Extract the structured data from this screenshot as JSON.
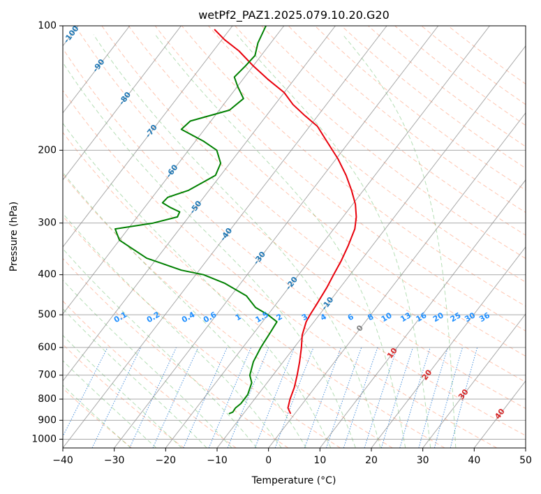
{
  "chart_data": {
    "type": "line",
    "diagram": "skew-T log-P",
    "title": "wetPf2_PAZ1.2025.079.10.20.G20",
    "xlabel": "Temperature (°C)",
    "ylabel": "Pressure (hPa)",
    "xlim": [
      -40,
      50
    ],
    "ylim": [
      1050,
      100
    ],
    "y_scale": "log",
    "x_ticks": [
      -40,
      -30,
      -20,
      -10,
      0,
      10,
      20,
      30,
      40,
      50
    ],
    "x_tick_labels": [
      "−40",
      "−30",
      "−20",
      "−10",
      "0",
      "10",
      "20",
      "30",
      "40",
      "50"
    ],
    "y_ticks": [
      100,
      200,
      300,
      400,
      500,
      600,
      700,
      800,
      900,
      1000
    ],
    "y_tick_labels": [
      "100",
      "200",
      "300",
      "400",
      "500",
      "600",
      "700",
      "800",
      "900",
      "1000"
    ],
    "grid": true,
    "series": [
      {
        "color": "#e8000b",
        "points": [
          {
            "p": 868,
            "t": -0.8
          },
          {
            "p": 840,
            "t": -2.2
          },
          {
            "p": 800,
            "t": -3.1
          },
          {
            "p": 750,
            "t": -4.0
          },
          {
            "p": 700,
            "t": -5.3
          },
          {
            "p": 650,
            "t": -6.8
          },
          {
            "p": 600,
            "t": -8.6
          },
          {
            "p": 560,
            "t": -10.3
          },
          {
            "p": 520,
            "t": -11.5
          },
          {
            "p": 500,
            "t": -11.8
          },
          {
            "p": 470,
            "t": -12.1
          },
          {
            "p": 430,
            "t": -12.6
          },
          {
            "p": 400,
            "t": -13.2
          },
          {
            "p": 370,
            "t": -13.8
          },
          {
            "p": 340,
            "t": -14.7
          },
          {
            "p": 310,
            "t": -15.9
          },
          {
            "p": 290,
            "t": -17.4
          },
          {
            "p": 270,
            "t": -19.5
          },
          {
            "p": 250,
            "t": -22.3
          },
          {
            "p": 230,
            "t": -25.6
          },
          {
            "p": 210,
            "t": -29.6
          },
          {
            "p": 190,
            "t": -34.5
          },
          {
            "p": 175,
            "t": -38.5
          },
          {
            "p": 165,
            "t": -42.5
          },
          {
            "p": 155,
            "t": -46.5
          },
          {
            "p": 145,
            "t": -50.0
          },
          {
            "p": 135,
            "t": -55.0
          },
          {
            "p": 125,
            "t": -60.0
          },
          {
            "p": 115,
            "t": -65.0
          },
          {
            "p": 108,
            "t": -69.5
          },
          {
            "p": 102,
            "t": -73.0
          }
        ]
      },
      {
        "color": "#008000",
        "points": [
          {
            "p": 868,
            "t": -12.8
          },
          {
            "p": 860,
            "t": -12.3
          },
          {
            "p": 840,
            "t": -12.4
          },
          {
            "p": 820,
            "t": -12.0
          },
          {
            "p": 780,
            "t": -12.0
          },
          {
            "p": 730,
            "t": -13.0
          },
          {
            "p": 700,
            "t": -14.5
          },
          {
            "p": 650,
            "t": -15.8
          },
          {
            "p": 600,
            "t": -16.5
          },
          {
            "p": 550,
            "t": -16.9
          },
          {
            "p": 520,
            "t": -17.2
          },
          {
            "p": 500,
            "t": -20.0
          },
          {
            "p": 480,
            "t": -23.5
          },
          {
            "p": 450,
            "t": -27.0
          },
          {
            "p": 420,
            "t": -33.0
          },
          {
            "p": 400,
            "t": -38.5
          },
          {
            "p": 390,
            "t": -43.5
          },
          {
            "p": 375,
            "t": -48.5
          },
          {
            "p": 365,
            "t": -52.0
          },
          {
            "p": 330,
            "t": -60.0
          },
          {
            "p": 310,
            "t": -62.5
          },
          {
            "p": 300,
            "t": -56.0
          },
          {
            "p": 290,
            "t": -52.2
          },
          {
            "p": 282,
            "t": -52.5
          },
          {
            "p": 275,
            "t": -55.0
          },
          {
            "p": 268,
            "t": -57.2
          },
          {
            "p": 260,
            "t": -57.0
          },
          {
            "p": 250,
            "t": -54.0
          },
          {
            "p": 230,
            "t": -51.0
          },
          {
            "p": 215,
            "t": -51.8
          },
          {
            "p": 200,
            "t": -54.5
          },
          {
            "p": 190,
            "t": -58.5
          },
          {
            "p": 178,
            "t": -64.5
          },
          {
            "p": 170,
            "t": -64.0
          },
          {
            "p": 160,
            "t": -58.0
          },
          {
            "p": 150,
            "t": -57.0
          },
          {
            "p": 140,
            "t": -60.0
          },
          {
            "p": 133,
            "t": -62.0
          },
          {
            "p": 125,
            "t": -61.5
          },
          {
            "p": 118,
            "t": -61.2
          },
          {
            "p": 110,
            "t": -62.5
          },
          {
            "p": 100,
            "t": -63.5
          }
        ]
      }
    ],
    "reference_lines": {
      "isotherms": {
        "color": "#8c8c8c",
        "values": [
          -180,
          -170,
          -160,
          -150,
          -140,
          -130,
          -120,
          -110,
          -100,
          -90,
          -80,
          -70,
          -60,
          -50,
          -40,
          -30,
          -20,
          -10,
          0,
          10,
          20,
          30,
          40,
          50
        ]
      },
      "dry_adiabats": {
        "color": "#ff7f50",
        "values_c": [
          -30,
          -20,
          -10,
          0,
          10,
          20,
          30,
          40,
          50,
          60,
          70,
          80,
          90,
          100,
          110,
          120,
          130,
          140,
          150,
          160,
          170,
          180,
          190,
          200
        ]
      },
      "moist_adiabats": {
        "color": "#2ca02c",
        "values_c": [
          -30,
          -25,
          -20,
          -15,
          -10,
          -5,
          0,
          5,
          10,
          15,
          20,
          25,
          30,
          35
        ]
      },
      "mixing_ratio": {
        "color": "#1f77d4",
        "values": [
          0.1,
          0.2,
          0.4,
          0.6,
          1,
          1.5,
          2,
          3,
          4,
          6,
          8,
          10,
          13,
          16,
          20,
          25,
          30,
          36
        ]
      }
    },
    "annotations": {
      "iso_labels_blue": [
        "-100",
        "-90",
        "-80",
        "-70",
        "-60",
        "-50",
        "-40",
        "-30",
        "-20",
        "-10"
      ],
      "iso_labels_red": [
        "0",
        "10",
        "20",
        "30",
        "40"
      ],
      "mixing_ratio_labels": [
        "0.1",
        "0.2",
        "0.4",
        "0.6",
        "1",
        "1.5",
        "2",
        "3",
        "4",
        "6",
        "8",
        "10",
        "13",
        "16",
        "20",
        "25",
        "30",
        "36"
      ]
    }
  }
}
